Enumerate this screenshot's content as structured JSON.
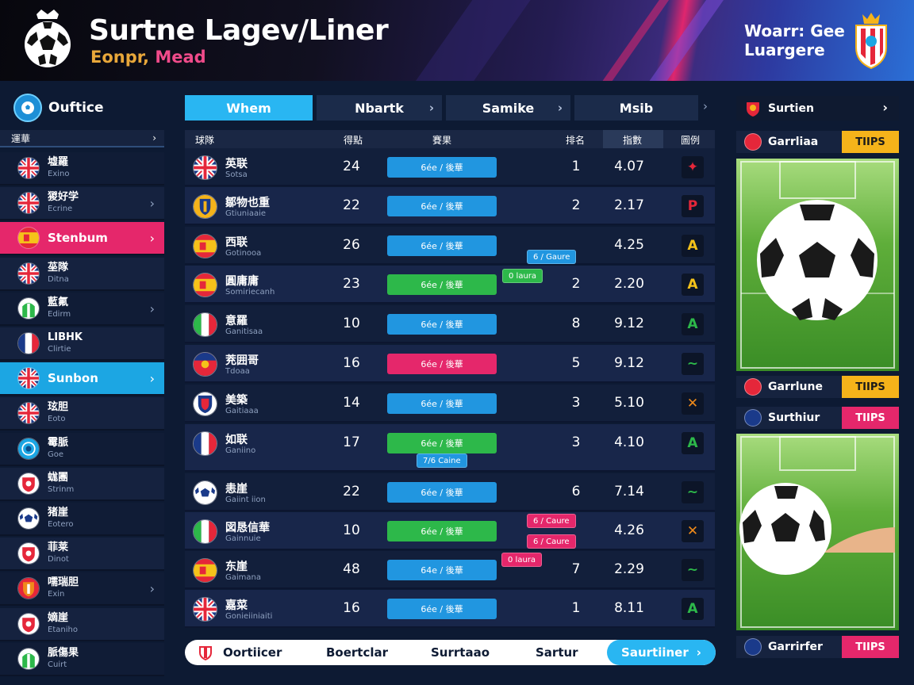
{
  "header": {
    "title": "Surtne Lagev/Liner",
    "subtitle_part1": "Eonpr, ",
    "subtitle_part2": "Mead",
    "brand_line1": "Woarr: Gee",
    "brand_line2": "Luargere",
    "colors": {
      "accent_pink": "#e5276b",
      "accent_blue": "#29b6f2",
      "subtitle_orange": "#e8a73a"
    }
  },
  "sidebar": {
    "head_label": "Ouftice",
    "filter_label": "運華",
    "items": [
      {
        "name": "墟羅",
        "sub": "Exino",
        "flag": "uk"
      },
      {
        "name": "猣好学",
        "sub": "Ecrine",
        "flag": "uk"
      },
      {
        "name": "Stenbum",
        "sub": "",
        "flag": "spain",
        "state": "active-pink"
      },
      {
        "name": "莝隊",
        "sub": "Ditna",
        "flag": "uk"
      },
      {
        "name": "藍氟",
        "sub": "Edirm",
        "flag": "green"
      },
      {
        "name": "LIBHK",
        "sub": "Clirtie",
        "flag": "france"
      },
      {
        "name": "Sunbon",
        "sub": "",
        "flag": "uk",
        "state": "active-blue"
      },
      {
        "name": "玹胆",
        "sub": "Eoto",
        "flag": "uk"
      },
      {
        "name": "霉脈",
        "sub": "Goe",
        "flag": "blue"
      },
      {
        "name": "蛖團",
        "sub": "Strinm",
        "flag": "red"
      },
      {
        "name": "猪崖",
        "sub": "Eotero",
        "flag": "ball"
      },
      {
        "name": "菲莱",
        "sub": "Dinot",
        "flag": "red"
      },
      {
        "name": "嚅瑞胆",
        "sub": "Exin",
        "flag": "orange"
      },
      {
        "name": "嫡崖",
        "sub": "Etaniho",
        "flag": "red"
      },
      {
        "name": "脈傷果",
        "sub": "Cuirt",
        "flag": "green"
      }
    ]
  },
  "tabs": [
    {
      "label": "Whem",
      "active": true
    },
    {
      "label": "Nbartk",
      "active": false
    },
    {
      "label": "Samike",
      "active": false
    },
    {
      "label": "Msib",
      "active": false
    }
  ],
  "table": {
    "headers": [
      "球隊",
      "得點",
      "賽果",
      "排名",
      "指數",
      "圖例"
    ],
    "rows": [
      {
        "name": "英联",
        "sub": "Sotsa",
        "flag": "uk",
        "num": "24",
        "pill": "6ée / 後華",
        "pill_color": "#2196e0",
        "rank": "1",
        "rate": "4.07",
        "ico": "✦",
        "ico_color": "#e5273a"
      },
      {
        "name": "鄒物也重",
        "sub": "Gtiuniaaie",
        "flag": "crest",
        "num": "22",
        "pill": "6ée / 後華",
        "pill_color": "#2196e0",
        "rank": "2",
        "rate": "2.17",
        "ico": "P",
        "ico_color": "#e5273a"
      },
      {
        "name": "西联",
        "sub": "Gotinooa",
        "flag": "spain",
        "num": "26",
        "pill": "6ée / 後華",
        "pill_color": "#2196e0",
        "rank": "",
        "rate": "4.25",
        "ico": "A",
        "ico_color": "#f5c21a"
      },
      {
        "name": "圓庸庸",
        "sub": "Somiriecanh",
        "flag": "spain",
        "num": "23",
        "pill": "6ée / 後華",
        "pill_color": "#2db84a",
        "rank": "2",
        "rate": "2.20",
        "ico": "A",
        "ico_color": "#f5c21a"
      },
      {
        "name": "意羅",
        "sub": "Ganitisaa",
        "flag": "italy",
        "num": "10",
        "pill": "6ée / 後華",
        "pill_color": "#2196e0",
        "rank": "8",
        "rate": "9.12",
        "ico": "A",
        "ico_color": "#2db84a"
      },
      {
        "name": "茺囲哥",
        "sub": "Tdoaa",
        "flag": "sweden",
        "num": "16",
        "pill": "6ée / 後華",
        "pill_color": "#e5276b",
        "rank": "5",
        "rate": "9.12",
        "ico": "~",
        "ico_color": "#2db84a"
      },
      {
        "name": "美築",
        "sub": "Gaitiaaa",
        "flag": "shield",
        "num": "14",
        "pill": "6ée / 後華",
        "pill_color": "#2196e0",
        "rank": "3",
        "rate": "5.10",
        "ico": "✕",
        "ico_color": "#f08a1a"
      },
      {
        "name": "如联",
        "sub": "Ganiino",
        "flag": "france",
        "num": "17",
        "pill": "6ée / 後華",
        "pill_color": "#2db84a",
        "rank": "3",
        "rate": "4.10",
        "ico": "A",
        "ico_color": "#2db84a"
      },
      {
        "name": "恚崖",
        "sub": "Gaiint iion",
        "flag": "ball",
        "num": "22",
        "pill": "6ée / 後華",
        "pill_color": "#2196e0",
        "rank": "6",
        "rate": "7.14",
        "ico": "~",
        "ico_color": "#2db84a"
      },
      {
        "name": "図恳信華",
        "sub": "Gainnuie",
        "flag": "italy",
        "num": "10",
        "pill": "6ée / 後華",
        "pill_color": "#2db84a",
        "rank": "",
        "rate": "4.26",
        "ico": "✕",
        "ico_color": "#f08a1a"
      },
      {
        "name": "东崖",
        "sub": "Gaimana",
        "flag": "spain",
        "num": "48",
        "pill": "64e / 後華",
        "pill_color": "#2196e0",
        "rank": "7",
        "rate": "2.29",
        "ico": "~",
        "ico_color": "#2db84a"
      },
      {
        "name": "嘉菜",
        "sub": "Gonieiiniaiti",
        "flag": "uk",
        "num": "16",
        "pill": "6ée / 後華",
        "pill_color": "#2196e0",
        "rank": "1",
        "rate": "8.11",
        "ico": "A",
        "ico_color": "#2db84a"
      }
    ],
    "tags": [
      {
        "label": "6 / Gaure",
        "color": "#2196e0"
      },
      {
        "label": "0 laura",
        "color": "#2db84a"
      },
      {
        "label": "7/6 Caine",
        "color": "#2196e0"
      },
      {
        "label": "6 / Caure",
        "color": "#e5276b"
      },
      {
        "label": "6 / Caure",
        "color": "#e5276b"
      },
      {
        "label": "0 laura",
        "color": "#e5276b"
      }
    ]
  },
  "bottom_bar": {
    "items": [
      "Oortiicer",
      "Boertclar",
      "Surrtaao",
      "Sartur"
    ],
    "active": "Saurtiiner"
  },
  "right_panel": {
    "top_label": "Surtien",
    "cards": [
      {
        "label": "Garrliaa",
        "badge": "TIIPS",
        "badge_color": "#f5b31a"
      },
      {
        "label": "Garrlune",
        "badge": "TIIPS",
        "badge_color": "#f5b31a"
      },
      {
        "label": "Surthiur",
        "badge": "TIIPS",
        "badge_color": "#e5276b"
      },
      {
        "label": "Garrirfer",
        "badge": "TIIPS",
        "badge_color": "#e5276b"
      }
    ]
  }
}
